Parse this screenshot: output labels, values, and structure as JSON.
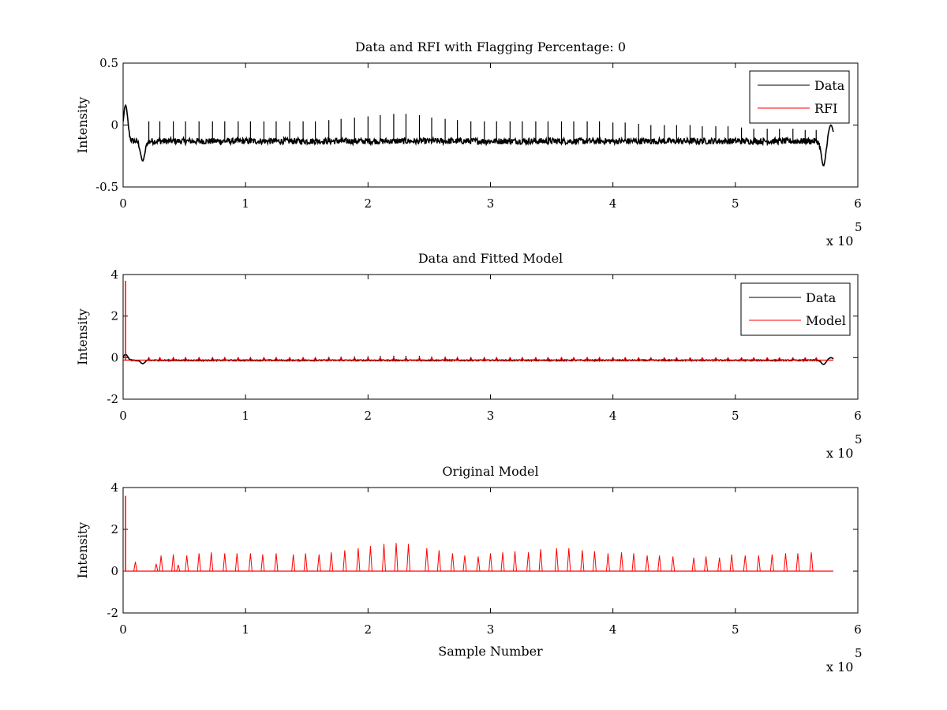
{
  "figure": {
    "background": "#ffffff",
    "colors": {
      "data": "#000000",
      "rfi": "#ff0000",
      "model": "#ff0000",
      "axes": "#000000"
    }
  },
  "chart_data": [
    {
      "type": "line",
      "title": "Data and RFI with Flagging Percentage: 0",
      "xlabel": "",
      "ylabel": "Intensity",
      "xlim": [
        0,
        6
      ],
      "ylim": [
        -0.5,
        0.5
      ],
      "x_exponent": {
        "base": "x 10",
        "power": "5"
      },
      "xticks": [
        "0",
        "1",
        "2",
        "3",
        "4",
        "5",
        "6"
      ],
      "yticks": [
        "-0.5",
        "0",
        "0.5"
      ],
      "grid": false,
      "legend": {
        "placement": "top-right",
        "entries": [
          "Data",
          "RFI"
        ]
      },
      "series": [
        {
          "name": "Data",
          "color": "#000000",
          "baseline": -0.13,
          "noise": 0.025,
          "x_end": 5.8,
          "features": [
            {
              "x": 0.02,
              "y": 0.16
            },
            {
              "x": 0.16,
              "y": -0.29
            },
            {
              "x": 5.72,
              "y": -0.33
            },
            {
              "x": 5.78,
              "y": 0.0
            }
          ],
          "spike_x": [
            0.21,
            0.3,
            0.41,
            0.51,
            0.62,
            0.73,
            0.83,
            0.94,
            1.04,
            1.15,
            1.25,
            1.36,
            1.47,
            1.57,
            1.68,
            1.78,
            1.89,
            2.0,
            2.1,
            2.21,
            2.31,
            2.42,
            2.52,
            2.63,
            2.73,
            2.84,
            2.95,
            3.05,
            3.16,
            3.26,
            3.37,
            3.47,
            3.58,
            3.68,
            3.79,
            3.89,
            4.0,
            4.1,
            4.21,
            4.31,
            4.42,
            4.52,
            4.63,
            4.73,
            4.84,
            4.94,
            5.05,
            5.15,
            5.26,
            5.36,
            5.47,
            5.57,
            5.66
          ],
          "spike_y": [
            0.03,
            0.03,
            0.03,
            0.03,
            0.03,
            0.03,
            0.03,
            0.03,
            0.03,
            0.03,
            0.03,
            0.03,
            0.03,
            0.03,
            0.04,
            0.05,
            0.06,
            0.07,
            0.08,
            0.09,
            0.09,
            0.08,
            0.06,
            0.05,
            0.04,
            0.03,
            0.03,
            0.03,
            0.03,
            0.03,
            0.03,
            0.03,
            0.03,
            0.03,
            0.03,
            0.03,
            0.02,
            0.02,
            0.01,
            0.0,
            0.0,
            0.0,
            0.0,
            -0.01,
            -0.01,
            -0.01,
            -0.02,
            -0.03,
            -0.03,
            -0.03,
            -0.03,
            -0.04,
            -0.04
          ]
        },
        {
          "name": "RFI",
          "color": "#ff0000",
          "values": []
        }
      ]
    },
    {
      "type": "line",
      "title": "Data and Fitted Model",
      "xlabel": "",
      "ylabel": "Intensity",
      "xlim": [
        0,
        6
      ],
      "ylim": [
        -2,
        4
      ],
      "x_exponent": {
        "base": "x 10",
        "power": "5"
      },
      "xticks": [
        "0",
        "1",
        "2",
        "3",
        "4",
        "5",
        "6"
      ],
      "yticks": [
        "-2",
        "0",
        "2",
        "4"
      ],
      "grid": false,
      "legend": {
        "placement": "top-right",
        "entries": [
          "Data",
          "Model"
        ]
      },
      "series": [
        {
          "name": "Data",
          "color": "#000000",
          "baseline": -0.13,
          "noise": 0.025,
          "x_end": 5.8,
          "features": [
            {
              "x": 0.02,
              "y": 0.16
            },
            {
              "x": 0.16,
              "y": -0.29
            },
            {
              "x": 5.72,
              "y": -0.33
            },
            {
              "x": 5.78,
              "y": 0.0
            }
          ],
          "spike_x": [
            0.21,
            0.3,
            0.41,
            0.51,
            0.62,
            0.73,
            0.83,
            0.94,
            1.04,
            1.15,
            1.25,
            1.36,
            1.47,
            1.57,
            1.68,
            1.78,
            1.89,
            2.0,
            2.1,
            2.21,
            2.31,
            2.42,
            2.52,
            2.63,
            2.73,
            2.84,
            2.95,
            3.05,
            3.16,
            3.26,
            3.37,
            3.47,
            3.58,
            3.68,
            3.79,
            3.89,
            4.0,
            4.1,
            4.21,
            4.31,
            4.42,
            4.52,
            4.63,
            4.73,
            4.84,
            4.94,
            5.05,
            5.15,
            5.26,
            5.36,
            5.47,
            5.57,
            5.66
          ],
          "spike_y": [
            0.03,
            0.03,
            0.03,
            0.03,
            0.03,
            0.03,
            0.03,
            0.03,
            0.03,
            0.03,
            0.03,
            0.03,
            0.03,
            0.03,
            0.04,
            0.05,
            0.06,
            0.07,
            0.08,
            0.09,
            0.09,
            0.08,
            0.06,
            0.05,
            0.04,
            0.03,
            0.03,
            0.03,
            0.03,
            0.03,
            0.03,
            0.03,
            0.03,
            0.03,
            0.03,
            0.03,
            0.02,
            0.02,
            0.01,
            0.0,
            0.0,
            0.0,
            0.0,
            -0.01,
            -0.01,
            -0.01,
            -0.02,
            -0.03,
            -0.03,
            -0.03,
            -0.03,
            -0.04,
            -0.04
          ]
        },
        {
          "name": "Model",
          "color": "#ff0000",
          "baseline": -0.12,
          "x_end": 5.8,
          "first_spike": {
            "x": 0.02,
            "y": 3.7
          },
          "spike_x": [
            0.21,
            0.3,
            0.41,
            0.51,
            0.62,
            0.73,
            0.83,
            0.94,
            1.04,
            1.15,
            1.25,
            1.36,
            1.47,
            1.57,
            1.68,
            1.78,
            1.89,
            2.0,
            2.1,
            2.21,
            2.31,
            2.42,
            2.52,
            2.63,
            2.73,
            2.84,
            2.95,
            3.05,
            3.16,
            3.26,
            3.37,
            3.47,
            3.58,
            3.68,
            3.79,
            3.89,
            4.0,
            4.1,
            4.21,
            4.31,
            4.42,
            4.52,
            4.63,
            4.73,
            4.84,
            4.94,
            5.05,
            5.15,
            5.26,
            5.36,
            5.47,
            5.57,
            5.66
          ],
          "spike_y": 0.0
        }
      ]
    },
    {
      "type": "line",
      "title": "Original Model",
      "xlabel": "Sample Number",
      "ylabel": "Intensity",
      "xlim": [
        0,
        6
      ],
      "ylim": [
        -2,
        4
      ],
      "x_exponent": {
        "base": "x 10",
        "power": "5"
      },
      "xticks": [
        "0",
        "1",
        "2",
        "3",
        "4",
        "5",
        "6"
      ],
      "yticks": [
        "-2",
        "0",
        "2",
        "4"
      ],
      "grid": false,
      "legend": null,
      "series": [
        {
          "name": "",
          "color": "#ff0000",
          "baseline": 0.0,
          "x_end": 5.8,
          "first_spike": {
            "x": 0.02,
            "y": 3.6
          },
          "spike_x": [
            0.1,
            0.27,
            0.31,
            0.41,
            0.45,
            0.52,
            0.62,
            0.72,
            0.83,
            0.93,
            1.04,
            1.14,
            1.25,
            1.39,
            1.49,
            1.6,
            1.7,
            1.81,
            1.92,
            2.02,
            2.13,
            2.23,
            2.33,
            2.48,
            2.58,
            2.69,
            2.79,
            2.9,
            3.0,
            3.1,
            3.2,
            3.31,
            3.41,
            3.54,
            3.64,
            3.75,
            3.85,
            3.96,
            4.07,
            4.17,
            4.28,
            4.38,
            4.49,
            4.66,
            4.76,
            4.87,
            4.97,
            5.08,
            5.19,
            5.3,
            5.41,
            5.51,
            5.62
          ],
          "spike_y": [
            0.45,
            0.35,
            0.75,
            0.8,
            0.3,
            0.75,
            0.85,
            0.9,
            0.85,
            0.85,
            0.85,
            0.8,
            0.85,
            0.8,
            0.85,
            0.8,
            0.9,
            1.0,
            1.1,
            1.2,
            1.3,
            1.35,
            1.3,
            1.1,
            1.0,
            0.85,
            0.75,
            0.7,
            0.85,
            0.9,
            0.95,
            0.9,
            1.05,
            1.1,
            1.1,
            1.0,
            0.95,
            0.85,
            0.9,
            0.85,
            0.75,
            0.75,
            0.7,
            0.65,
            0.7,
            0.65,
            0.8,
            0.75,
            0.75,
            0.8,
            0.85,
            0.85,
            0.9
          ]
        }
      ]
    }
  ]
}
